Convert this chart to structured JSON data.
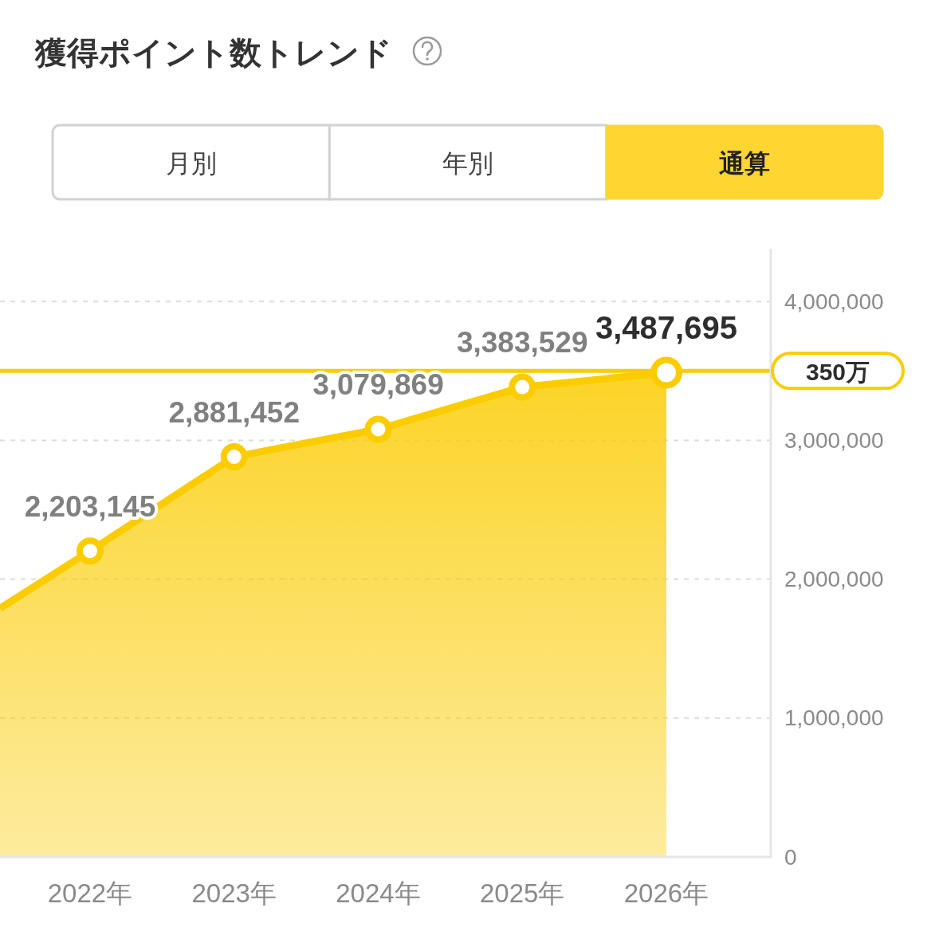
{
  "chart_data": {
    "type": "area",
    "title": "獲得ポイント数トレンド",
    "annotations": [
      "月別",
      "年別",
      "通算"
    ],
    "x": [
      2021.375,
      2022,
      2023,
      2024,
      2025,
      2026
    ],
    "series": [
      {
        "color": "#fbcc00",
        "values": [
          1790000,
          2203145,
          2881452,
          3079869,
          3383529,
          3487695
        ],
        "value_labels": [
          null,
          "2,203,145",
          "2,881,452",
          "3,079,869",
          "3,383,529",
          "3,487,695"
        ]
      }
    ],
    "xlim": [
      2021.375,
      2026.725
    ],
    "xticks": [
      {
        "value": 2022,
        "label": "2022年"
      },
      {
        "value": 2023,
        "label": "2023年"
      },
      {
        "value": 2024,
        "label": "2024年"
      },
      {
        "value": 2025,
        "label": "2025年"
      },
      {
        "value": 2026,
        "label": "2026年"
      }
    ],
    "ylim": [
      0,
      4380000
    ],
    "yticks": [
      0,
      {
        "value": 1000000,
        "label": "1,000,000"
      },
      {
        "value": 2000000,
        "label": "2,000,000"
      },
      {
        "value": 3000000,
        "label": "3,000,000"
      },
      {
        "value": 4000000,
        "label": "4,000,000"
      }
    ],
    "grid": "y",
    "marker": "circle",
    "line_style": "solid",
    "ref_lines": [
      {
        "axis": "y",
        "value": 3500000,
        "label": "350万",
        "color": "#fbcc00"
      }
    ]
  }
}
